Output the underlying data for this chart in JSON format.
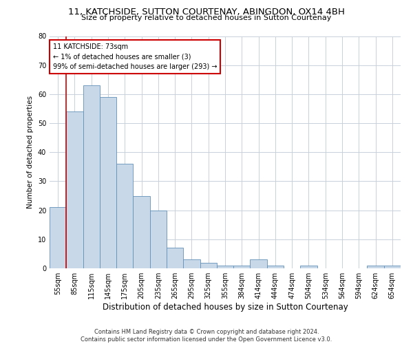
{
  "title_line1": "11, KATCHSIDE, SUTTON COURTENAY, ABINGDON, OX14 4BH",
  "title_line2": "Size of property relative to detached houses in Sutton Courtenay",
  "xlabel": "Distribution of detached houses by size in Sutton Courtenay",
  "ylabel": "Number of detached properties",
  "footnote": "Contains HM Land Registry data © Crown copyright and database right 2024.\nContains public sector information licensed under the Open Government Licence v3.0.",
  "bar_labels": [
    "55sqm",
    "85sqm",
    "115sqm",
    "145sqm",
    "175sqm",
    "205sqm",
    "235sqm",
    "265sqm",
    "295sqm",
    "325sqm",
    "355sqm",
    "384sqm",
    "414sqm",
    "444sqm",
    "474sqm",
    "504sqm",
    "534sqm",
    "564sqm",
    "594sqm",
    "624sqm",
    "654sqm"
  ],
  "bar_values": [
    21,
    54,
    63,
    59,
    36,
    25,
    20,
    7,
    3,
    2,
    1,
    1,
    3,
    1,
    0,
    1,
    0,
    0,
    0,
    1,
    1
  ],
  "bar_color": "#c8d8e8",
  "bar_edge_color": "#6090b8",
  "ylim": [
    0,
    80
  ],
  "yticks": [
    0,
    10,
    20,
    30,
    40,
    50,
    60,
    70,
    80
  ],
  "annotation_text": "11 KATCHSIDE: 73sqm\n← 1% of detached houses are smaller (3)\n99% of semi-detached houses are larger (293) →",
  "vline_x": 0.5,
  "annotation_box_color": "#ffffff",
  "annotation_box_edge": "#cc0000",
  "vline_color": "#cc0000",
  "background_color": "#ffffff",
  "grid_color": "#c8d0dc",
  "title1_fontsize": 9.5,
  "title2_fontsize": 8.0,
  "ylabel_fontsize": 7.5,
  "xlabel_fontsize": 8.5,
  "tick_fontsize": 7.0,
  "annot_fontsize": 7.0,
  "footnote_fontsize": 6.0
}
